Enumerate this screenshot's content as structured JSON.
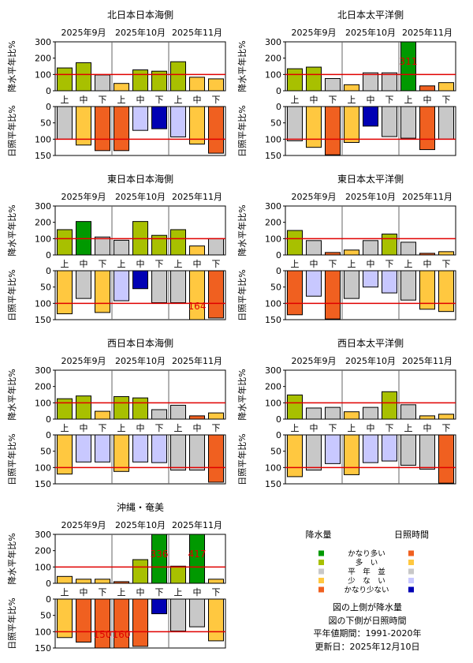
{
  "legend": {
    "precip_header": "降水量",
    "sun_header": "日照時間",
    "classes": [
      "かなり多い",
      "多　い",
      "平　年　並",
      "少　な　い",
      "かなり少ない"
    ],
    "precip_colors": [
      "#009900",
      "#a8c000",
      "#c8c8c8",
      "#ffc840",
      "#f06020"
    ],
    "sun_colors": [
      "#f06020",
      "#ffc840",
      "#c8c8c8",
      "#c8c8ff",
      "#0000b4"
    ],
    "notes": [
      "図の上側が降水量",
      "図の下側が日照時間",
      "平年値期間：1991-2020年",
      "更新日：2025年12月10日"
    ]
  },
  "chart_data": [
    {
      "type": "bar",
      "title": "北日本日本海側",
      "months": [
        "2025年9月",
        "2025年10月",
        "2025年11月"
      ],
      "categories": [
        "上",
        "中",
        "下",
        "上",
        "中",
        "下",
        "上",
        "中",
        "下"
      ],
      "precip_ylabel": "降水平年比%",
      "sun_ylabel": "日照平年比%",
      "precip_ylim": [
        0,
        300
      ],
      "sun_ylim": [
        0,
        150
      ],
      "precip_ticks": [
        "0",
        "100",
        "200",
        "300"
      ],
      "sun_ticks": [
        "0",
        "50",
        "100",
        "150"
      ],
      "reference": 100,
      "precip": [
        140,
        172,
        97,
        45,
        128,
        120,
        178,
        83,
        73
      ],
      "precip_class": [
        1,
        1,
        2,
        3,
        1,
        1,
        1,
        3,
        3
      ],
      "precip_overflow": [
        "",
        "",
        "",
        "",
        "",
        "",
        "",
        "",
        ""
      ],
      "sun": [
        100,
        118,
        135,
        135,
        73,
        68,
        93,
        115,
        143
      ],
      "sun_class": [
        2,
        1,
        0,
        0,
        3,
        4,
        3,
        1,
        0
      ],
      "sun_overflow": [
        "",
        "",
        "",
        "",
        "",
        "",
        "",
        "",
        ""
      ]
    },
    {
      "type": "bar",
      "title": "北日本太平洋側",
      "months": [
        "2025年9月",
        "2025年10月",
        "2025年11月"
      ],
      "categories": [
        "上",
        "中",
        "下",
        "上",
        "中",
        "下",
        "上",
        "中",
        "下"
      ],
      "precip_ylabel": "降水平年比%",
      "sun_ylabel": "日照平年比%",
      "precip_ylim": [
        0,
        300
      ],
      "sun_ylim": [
        0,
        150
      ],
      "precip_ticks": [
        "0",
        "100",
        "200",
        "300"
      ],
      "sun_ticks": [
        "0",
        "50",
        "100",
        "150"
      ],
      "reference": 100,
      "precip": [
        135,
        145,
        75,
        37,
        110,
        110,
        311,
        30,
        50
      ],
      "precip_class": [
        1,
        1,
        2,
        3,
        2,
        2,
        0,
        4,
        3
      ],
      "precip_overflow": [
        "",
        "",
        "",
        "",
        "",
        "",
        "311",
        "",
        ""
      ],
      "sun": [
        105,
        125,
        148,
        110,
        60,
        92,
        97,
        132,
        100
      ],
      "sun_class": [
        2,
        1,
        0,
        1,
        4,
        2,
        2,
        0,
        2
      ],
      "sun_overflow": [
        "",
        "",
        "",
        "",
        "",
        "",
        "",
        "",
        ""
      ]
    },
    {
      "type": "bar",
      "title": "東日本日本海側",
      "months": [
        "2025年9月",
        "2025年10月",
        "2025年11月"
      ],
      "categories": [
        "上",
        "中",
        "下",
        "上",
        "中",
        "下",
        "上",
        "中",
        "下"
      ],
      "precip_ylabel": "降水平年比%",
      "sun_ylabel": "日照平年比%",
      "precip_ylim": [
        0,
        300
      ],
      "sun_ylim": [
        0,
        150
      ],
      "precip_ticks": [
        "0",
        "100",
        "200",
        "300"
      ],
      "sun_ticks": [
        "0",
        "50",
        "100",
        "150"
      ],
      "reference": 100,
      "precip": [
        155,
        205,
        110,
        90,
        205,
        120,
        155,
        55,
        100
      ],
      "precip_class": [
        1,
        0,
        2,
        2,
        1,
        1,
        1,
        3,
        2
      ],
      "precip_overflow": [
        "",
        "",
        "",
        "",
        "",
        "",
        "",
        "",
        ""
      ],
      "sun": [
        132,
        85,
        128,
        92,
        55,
        98,
        98,
        164,
        145
      ],
      "sun_class": [
        1,
        2,
        1,
        3,
        4,
        2,
        2,
        1,
        0
      ],
      "sun_overflow": [
        "",
        "",
        "",
        "",
        "",
        "",
        "",
        "164",
        ""
      ]
    },
    {
      "type": "bar",
      "title": "東日本太平洋側",
      "months": [
        "2025年9月",
        "2025年10月",
        "2025年11月"
      ],
      "categories": [
        "上",
        "中",
        "下",
        "上",
        "中",
        "下",
        "上",
        "中",
        "下"
      ],
      "precip_ylabel": "降水平年比%",
      "sun_ylabel": "日照平年比%",
      "precip_ylim": [
        0,
        300
      ],
      "sun_ylim": [
        0,
        150
      ],
      "precip_ticks": [
        "0",
        "100",
        "200",
        "300"
      ],
      "sun_ticks": [
        "0",
        "50",
        "100",
        "150"
      ],
      "reference": 100,
      "precip": [
        150,
        88,
        15,
        30,
        88,
        128,
        78,
        10,
        20
      ],
      "precip_class": [
        1,
        2,
        4,
        3,
        2,
        1,
        2,
        4,
        3
      ],
      "precip_overflow": [
        "",
        "",
        "",
        "",
        "",
        "",
        "",
        "",
        ""
      ],
      "sun": [
        135,
        78,
        148,
        85,
        50,
        68,
        90,
        118,
        125
      ],
      "sun_class": [
        0,
        3,
        0,
        2,
        3,
        3,
        2,
        1,
        1
      ],
      "sun_overflow": [
        "",
        "",
        "",
        "",
        "",
        "",
        "",
        "",
        ""
      ]
    },
    {
      "type": "bar",
      "title": "西日本日本海側",
      "months": [
        "2025年9月",
        "2025年10月",
        "2025年11月"
      ],
      "categories": [
        "上",
        "中",
        "下",
        "上",
        "中",
        "下",
        "上",
        "中",
        "下"
      ],
      "precip_ylabel": "降水平年比%",
      "sun_ylabel": "日照平年比%",
      "precip_ylim": [
        0,
        300
      ],
      "sun_ylim": [
        0,
        150
      ],
      "precip_ticks": [
        "0",
        "100",
        "200",
        "300"
      ],
      "sun_ticks": [
        "0",
        "50",
        "100",
        "150"
      ],
      "reference": 100,
      "precip": [
        125,
        142,
        48,
        138,
        130,
        58,
        85,
        20,
        38
      ],
      "precip_class": [
        1,
        1,
        3,
        1,
        1,
        2,
        2,
        4,
        3
      ],
      "precip_overflow": [
        "",
        "",
        "",
        "",
        "",
        "",
        "",
        "",
        ""
      ],
      "sun": [
        120,
        83,
        83,
        112,
        83,
        85,
        108,
        108,
        145
      ],
      "sun_class": [
        1,
        3,
        3,
        1,
        3,
        3,
        2,
        2,
        0
      ],
      "sun_overflow": [
        "",
        "",
        "",
        "",
        "",
        "",
        "",
        "",
        ""
      ]
    },
    {
      "type": "bar",
      "title": "西日本太平洋側",
      "months": [
        "2025年9月",
        "2025年10月",
        "2025年11月"
      ],
      "categories": [
        "上",
        "中",
        "下",
        "上",
        "中",
        "下",
        "上",
        "中",
        "下"
      ],
      "precip_ylabel": "降水平年比%",
      "sun_ylabel": "日照平年比%",
      "precip_ylim": [
        0,
        300
      ],
      "sun_ylim": [
        0,
        150
      ],
      "precip_ticks": [
        "0",
        "100",
        "200",
        "300"
      ],
      "sun_ticks": [
        "0",
        "50",
        "100",
        "150"
      ],
      "reference": 100,
      "precip": [
        148,
        68,
        72,
        45,
        72,
        168,
        88,
        20,
        30
      ],
      "precip_class": [
        1,
        2,
        2,
        3,
        2,
        1,
        2,
        3,
        3
      ],
      "precip_overflow": [
        "",
        "",
        "",
        "",
        "",
        "",
        "",
        "",
        ""
      ],
      "sun": [
        128,
        108,
        88,
        122,
        85,
        80,
        93,
        105,
        148
      ],
      "sun_class": [
        1,
        2,
        3,
        1,
        3,
        3,
        2,
        2,
        0
      ],
      "sun_overflow": [
        "",
        "",
        "",
        "",
        "",
        "",
        "",
        "",
        ""
      ]
    },
    {
      "type": "bar",
      "title": "沖縄・奄美",
      "months": [
        "2025年9月",
        "2025年10月",
        "2025年11月"
      ],
      "categories": [
        "上",
        "中",
        "下",
        "上",
        "中",
        "下",
        "上",
        "中",
        "下"
      ],
      "precip_ylabel": "降水平年比%",
      "sun_ylabel": "日照平年比%",
      "precip_ylim": [
        0,
        300
      ],
      "sun_ylim": [
        0,
        150
      ],
      "precip_ticks": [
        "0",
        "100",
        "200",
        "300"
      ],
      "sun_ticks": [
        "0",
        "50",
        "100",
        "150"
      ],
      "reference": 100,
      "precip": [
        42,
        25,
        25,
        10,
        145,
        336,
        105,
        417,
        25
      ],
      "precip_class": [
        3,
        3,
        3,
        4,
        1,
        0,
        1,
        0,
        3
      ],
      "precip_overflow": [
        "",
        "",
        "",
        "",
        "",
        "336",
        "",
        "417",
        ""
      ],
      "sun": [
        118,
        132,
        150,
        160,
        145,
        45,
        98,
        85,
        128
      ],
      "sun_class": [
        1,
        0,
        0,
        0,
        0,
        4,
        2,
        2,
        1
      ],
      "sun_overflow": [
        "",
        "",
        "150",
        "160",
        "",
        "",
        "",
        "",
        ""
      ]
    }
  ]
}
